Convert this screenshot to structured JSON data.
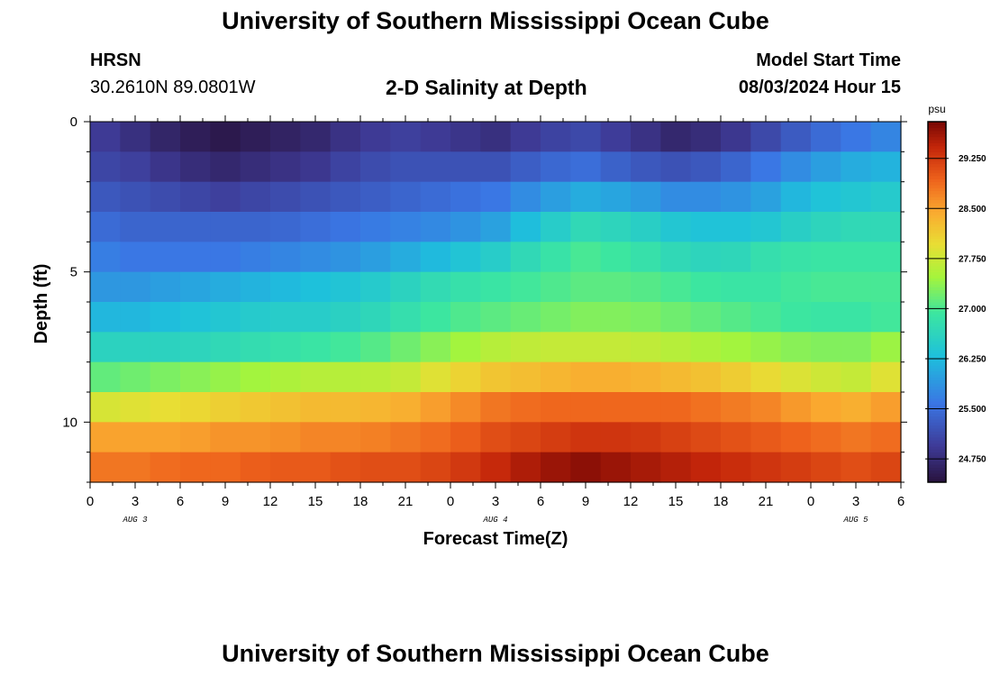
{
  "header": {
    "title": "University of Southern Mississippi Ocean Cube",
    "station": "HRSN",
    "coordinates": "30.2610N  89.0801W",
    "subtitle": "2-D Salinity at Depth",
    "model_start_label": "Model Start Time",
    "model_start_value": "08/03/2024 Hour 15"
  },
  "footer": {
    "title": "University of Southern Mississippi Ocean Cube"
  },
  "chart_data": {
    "type": "heatmap",
    "xlabel": "Forecast Time(Z)",
    "ylabel": "Depth (ft)",
    "x_tick_labels": [
      "0",
      "3",
      "6",
      "9",
      "12",
      "15",
      "18",
      "21",
      "0",
      "3",
      "6",
      "9",
      "12",
      "15",
      "18",
      "21",
      "0",
      "3",
      "6"
    ],
    "date_labels": [
      {
        "label": "AUG 3",
        "at_hour": 3
      },
      {
        "label": "AUG 4",
        "at_hour": 27
      },
      {
        "label": "AUG 5",
        "at_hour": 51
      }
    ],
    "x_range_hours": [
      0,
      54
    ],
    "y_tick_labels": [
      "0",
      "5",
      "10"
    ],
    "y_range_ft": [
      0,
      12
    ],
    "depth_layers_ft": [
      0.5,
      1.5,
      2.5,
      3.5,
      4.5,
      5.5,
      6.5,
      7.5,
      8.5,
      9.5,
      10.5,
      11.5
    ],
    "time_keys_hours": [
      0,
      3,
      6,
      9,
      12,
      15,
      18,
      21,
      24,
      27,
      30,
      33,
      36,
      39,
      42,
      45,
      48,
      51,
      54
    ],
    "salinity_psu_by_layer": [
      [
        25.0,
        24.8,
        24.6,
        24.5,
        24.6,
        24.7,
        24.9,
        25.0,
        24.9,
        24.8,
        25.0,
        25.1,
        24.9,
        24.7,
        24.8,
        25.1,
        25.4,
        25.6,
        25.8
      ],
      [
        25.1,
        25.0,
        24.8,
        24.7,
        24.8,
        24.9,
        25.1,
        25.2,
        25.2,
        25.2,
        25.4,
        25.5,
        25.3,
        25.2,
        25.3,
        25.6,
        25.9,
        26.1,
        26.2
      ],
      [
        25.3,
        25.2,
        25.1,
        25.0,
        25.1,
        25.2,
        25.3,
        25.4,
        25.5,
        25.6,
        25.9,
        26.1,
        26.0,
        25.8,
        25.8,
        26.0,
        26.3,
        26.4,
        26.5
      ],
      [
        25.5,
        25.4,
        25.4,
        25.4,
        25.4,
        25.5,
        25.6,
        25.7,
        25.8,
        26.0,
        26.4,
        26.7,
        26.6,
        26.4,
        26.3,
        26.4,
        26.6,
        26.7,
        26.7
      ],
      [
        25.7,
        25.6,
        25.6,
        25.6,
        25.7,
        25.8,
        25.9,
        26.1,
        26.3,
        26.5,
        26.8,
        27.0,
        26.9,
        26.7,
        26.6,
        26.8,
        26.9,
        26.9,
        26.9
      ],
      [
        25.9,
        25.9,
        26.0,
        26.1,
        26.2,
        26.3,
        26.4,
        26.6,
        26.8,
        26.9,
        27.0,
        27.1,
        27.1,
        27.0,
        26.9,
        26.9,
        27.0,
        27.0,
        27.0
      ],
      [
        26.2,
        26.2,
        26.3,
        26.4,
        26.5,
        26.5,
        26.6,
        26.8,
        27.0,
        27.1,
        27.2,
        27.3,
        27.3,
        27.2,
        27.1,
        27.0,
        26.9,
        26.9,
        27.0
      ],
      [
        26.6,
        26.6,
        26.6,
        26.7,
        26.8,
        26.9,
        27.0,
        27.2,
        27.4,
        27.6,
        27.7,
        27.7,
        27.7,
        27.6,
        27.5,
        27.4,
        27.3,
        27.3,
        27.5
      ],
      [
        27.1,
        27.2,
        27.3,
        27.4,
        27.5,
        27.6,
        27.6,
        27.7,
        28.0,
        28.2,
        28.3,
        28.4,
        28.4,
        28.3,
        28.2,
        28.0,
        27.8,
        27.7,
        28.0
      ],
      [
        27.8,
        27.9,
        28.0,
        28.1,
        28.2,
        28.3,
        28.3,
        28.4,
        28.6,
        28.8,
        28.9,
        28.9,
        28.9,
        28.9,
        28.8,
        28.7,
        28.5,
        28.4,
        28.6
      ],
      [
        28.5,
        28.5,
        28.5,
        28.6,
        28.6,
        28.7,
        28.7,
        28.8,
        28.9,
        29.1,
        29.2,
        29.3,
        29.3,
        29.2,
        29.1,
        29.0,
        28.9,
        28.8,
        28.9
      ],
      [
        28.8,
        28.8,
        28.9,
        28.9,
        29.0,
        29.0,
        29.1,
        29.1,
        29.2,
        29.4,
        29.6,
        29.7,
        29.6,
        29.5,
        29.4,
        29.3,
        29.2,
        29.1,
        29.2
      ]
    ],
    "colorbar": {
      "unit": "psu",
      "range": [
        24.4,
        29.8
      ],
      "tick_values": [
        24.75,
        25.5,
        26.25,
        27.0,
        27.75,
        28.5,
        29.25
      ],
      "tick_labels": [
        "24.750",
        "25.500",
        "26.250",
        "27.000",
        "27.750",
        "28.500",
        "29.250"
      ]
    }
  }
}
